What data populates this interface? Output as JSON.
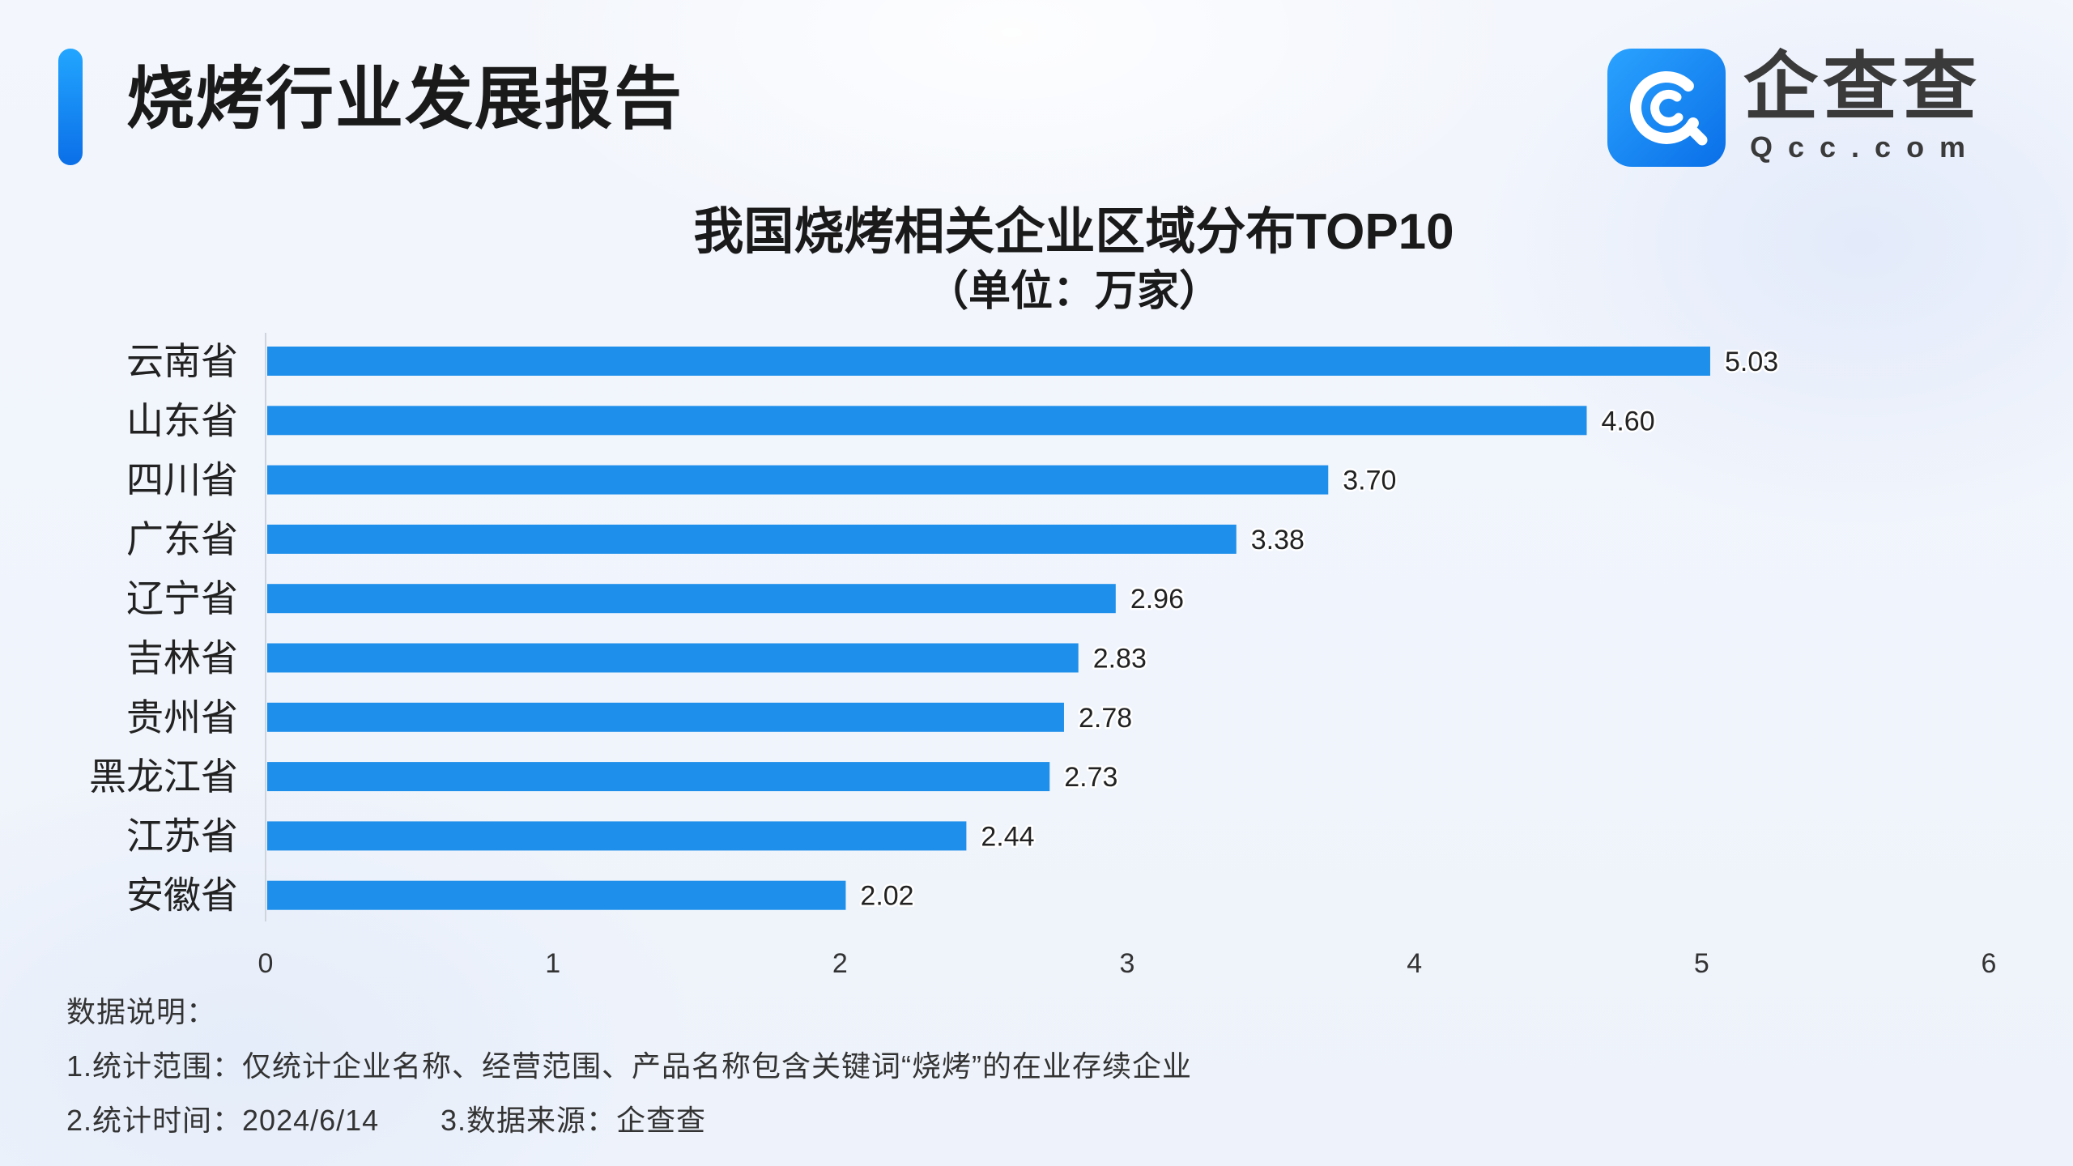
{
  "header": {
    "title": "烧烤行业发展报告",
    "accent_color": "#1a8cff"
  },
  "logo": {
    "icon": "qcc-magnifier-icon",
    "name": "企查查",
    "domain": "Qcc.com",
    "icon_color_top": "#2aa3ff",
    "icon_color_bottom": "#0a6fe8"
  },
  "chart_data": {
    "type": "bar",
    "orientation": "horizontal",
    "title": "我国烧烤相关企业区域分布TOP10",
    "subtitle": "（单位：万家）",
    "xlabel": "",
    "ylabel": "",
    "categories": [
      "云南省",
      "山东省",
      "四川省",
      "广东省",
      "辽宁省",
      "吉林省",
      "贵州省",
      "黑龙江省",
      "江苏省",
      "安徽省"
    ],
    "values": [
      5.03,
      4.6,
      3.7,
      3.38,
      2.96,
      2.83,
      2.78,
      2.73,
      2.44,
      2.02
    ],
    "data_labels": [
      "5.03",
      "4.60",
      "3.70",
      "3.38",
      "2.96",
      "2.83",
      "2.78",
      "2.73",
      "2.44",
      "2.02"
    ],
    "xlim": [
      0,
      6
    ],
    "xticks": [
      0,
      1,
      2,
      3,
      4,
      5,
      6
    ],
    "grid": false,
    "bar_color": "#1e8fea",
    "axis_color": "#d0d4dc"
  },
  "notes": {
    "heading": "数据说明：",
    "scope": "1.统计范围：仅统计企业名称、经营范围、产品名称包含关键词“烧烤”的在业存续企业",
    "time": "2.统计时间：2024/6/14",
    "source": "3.数据来源：企查查"
  }
}
